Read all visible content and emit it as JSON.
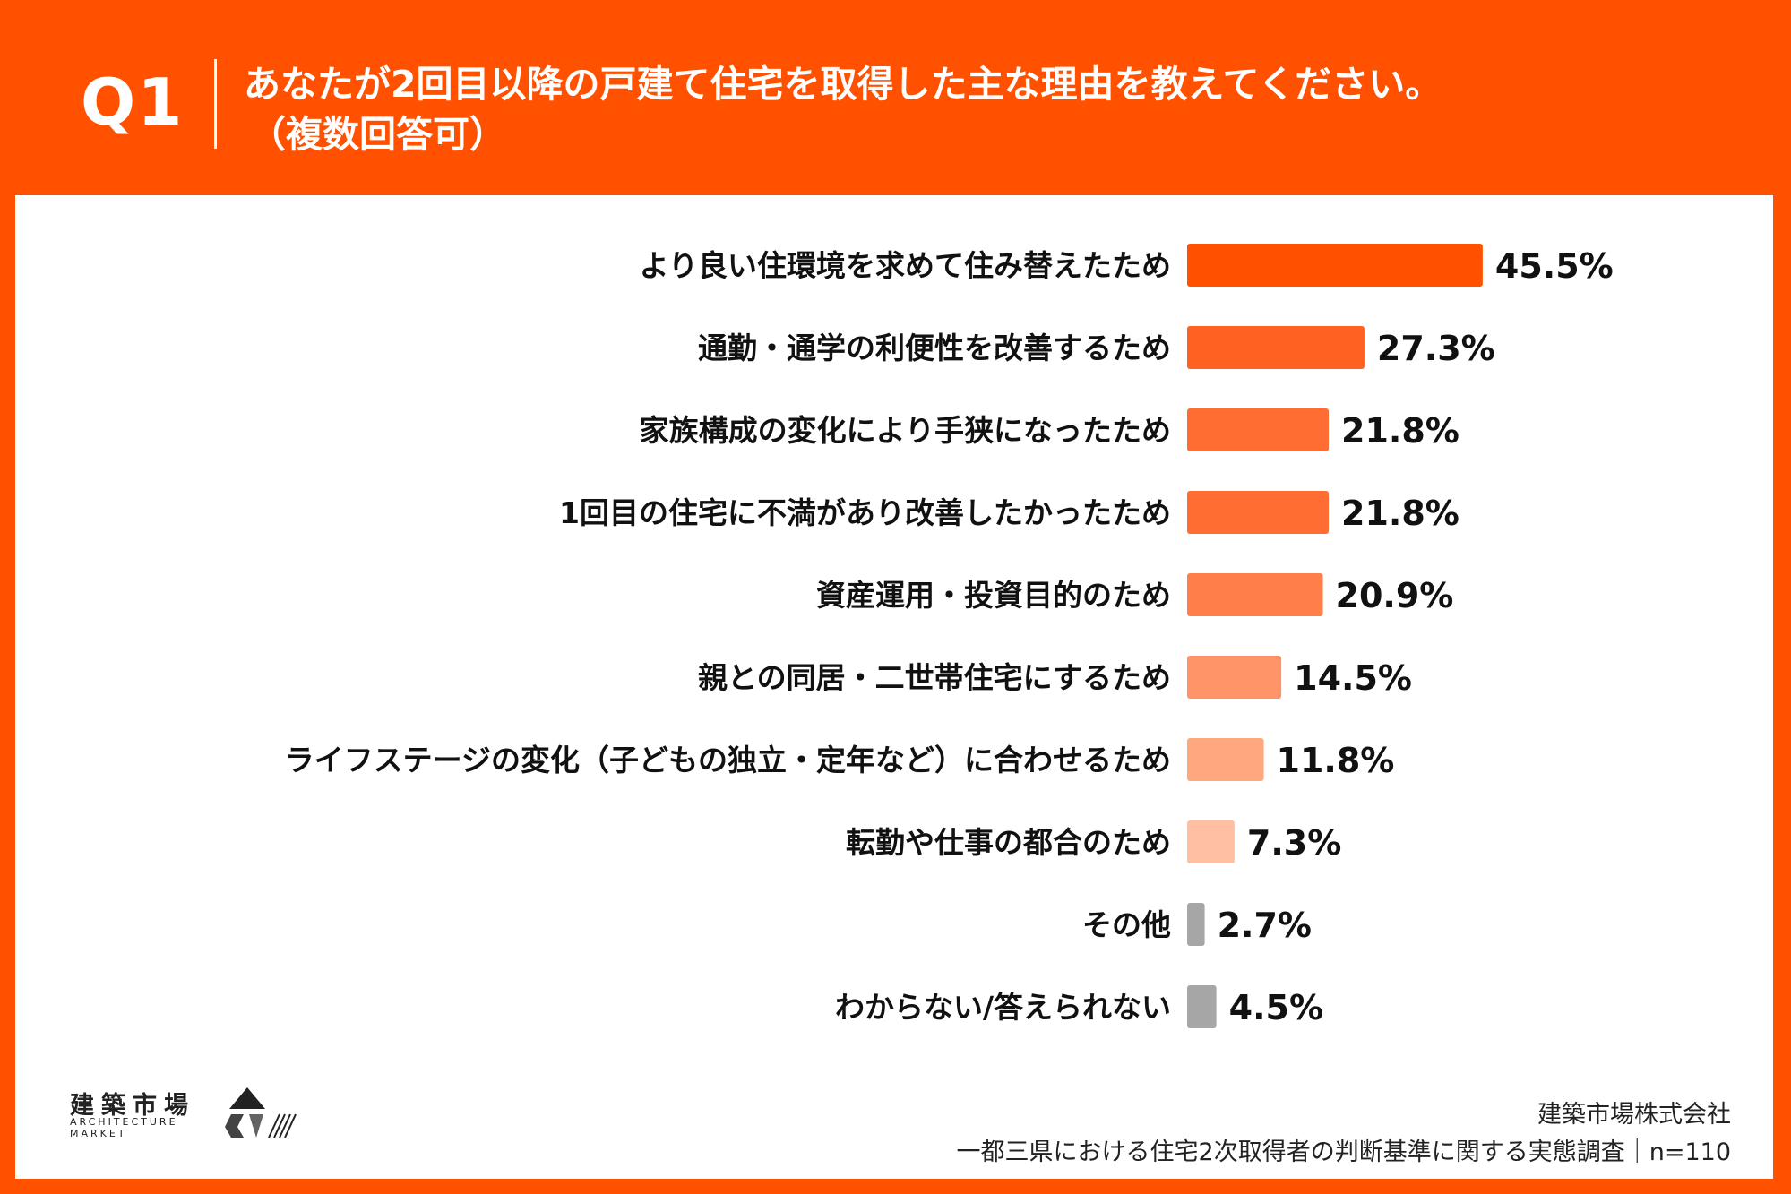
{
  "header": {
    "q_label": "Q1",
    "title_line1": "あなたが2回目以降の戸建て住宅を取得した主な理由を教えてください。",
    "title_line2": "（複数回答可）"
  },
  "chart_data": {
    "type": "bar",
    "orientation": "horizontal",
    "categories": [
      "より良い住環境を求めて住み替えたため",
      "通勤・通学の利便性を改善するため",
      "家族構成の変化により手狭になったため",
      "1回目の住宅に不満があり改善したかったため",
      "資産運用・投資目的のため",
      "親との同居・二世帯住宅にするため",
      "ライフステージの変化（子どもの独立・定年など）に合わせるため",
      "転勤や仕事の都合のため",
      "その他",
      "わからない/答えられない"
    ],
    "values": [
      45.5,
      27.3,
      21.8,
      21.8,
      20.9,
      14.5,
      11.8,
      7.3,
      2.7,
      4.5
    ],
    "value_labels": [
      "45.5%",
      "27.3%",
      "21.8%",
      "21.8%",
      "20.9%",
      "14.5%",
      "11.8%",
      "7.3%",
      "2.7%",
      "4.5%"
    ],
    "colors": [
      "#ff5100",
      "#ff6122",
      "#ff6d33",
      "#ff6d33",
      "#ff7e4a",
      "#ff9468",
      "#ffa880",
      "#ffbfa2",
      "#a6a6a6",
      "#a6a6a6"
    ],
    "unit": "%",
    "xlim": [
      0,
      50
    ]
  },
  "footer": {
    "company": "建築市場株式会社",
    "survey": "一都三県における住宅2次取得者の判断基準に関する実態調査｜n=110"
  },
  "logo": {
    "jp": "建築市場",
    "en_line1": "ARCHITECTURE",
    "en_line2": "MARKET"
  }
}
